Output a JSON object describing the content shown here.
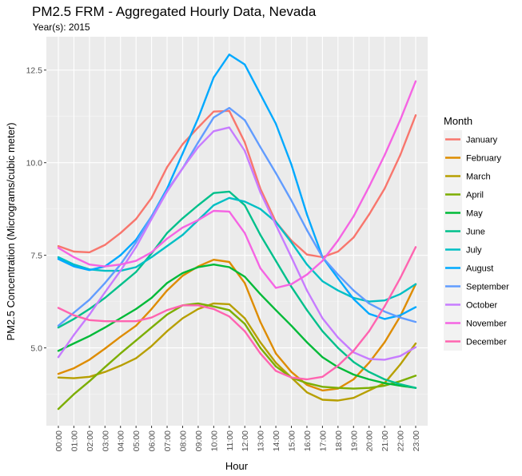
{
  "chart_data": {
    "type": "line",
    "title": "PM2.5 FRM - Aggregated Hourly Data, Nevada",
    "subtitle": "Year(s): 2015",
    "xlabel": "Hour",
    "ylabel": "PM2.5 Concentration (Micrograms/cubic meter)",
    "ylim": [
      2.9,
      13.4
    ],
    "yticks": [
      5.0,
      7.5,
      10.0,
      12.5
    ],
    "ytick_labels": [
      "5.0",
      "7.5",
      "10.0",
      "12.5"
    ],
    "grid": true,
    "legend_title": "Month",
    "legend_position": "right",
    "categories": [
      "00:00",
      "01:00",
      "02:00",
      "03:00",
      "04:00",
      "05:00",
      "06:00",
      "07:00",
      "08:00",
      "09:00",
      "10:00",
      "11:00",
      "12:00",
      "13:00",
      "14:00",
      "15:00",
      "16:00",
      "17:00",
      "18:00",
      "19:00",
      "20:00",
      "21:00",
      "22:00",
      "23:00"
    ],
    "series": [
      {
        "name": "January",
        "color": "#F8766D",
        "values": [
          7.75,
          7.6,
          7.58,
          7.78,
          8.1,
          8.48,
          9.05,
          9.88,
          10.5,
          10.95,
          11.38,
          11.4,
          10.55,
          9.3,
          8.4,
          7.9,
          7.52,
          7.45,
          7.6,
          7.98,
          8.6,
          9.3,
          10.2,
          11.28
        ]
      },
      {
        "name": "February",
        "color": "#DE8C00",
        "values": [
          4.3,
          4.45,
          4.68,
          4.98,
          5.3,
          5.6,
          6.05,
          6.55,
          6.95,
          7.2,
          7.38,
          7.32,
          6.75,
          5.7,
          4.85,
          4.35,
          4.0,
          3.85,
          3.9,
          4.15,
          4.6,
          5.15,
          5.85,
          6.72
        ]
      },
      {
        "name": "March",
        "color": "#B79F00",
        "values": [
          4.2,
          4.18,
          4.22,
          4.35,
          4.52,
          4.72,
          5.05,
          5.45,
          5.8,
          6.05,
          6.2,
          6.18,
          5.8,
          5.15,
          4.6,
          4.2,
          3.8,
          3.6,
          3.58,
          3.65,
          3.85,
          4.05,
          4.55,
          5.12
        ]
      },
      {
        "name": "April",
        "color": "#7CAE00",
        "values": [
          3.35,
          3.75,
          4.1,
          4.48,
          4.85,
          5.2,
          5.55,
          5.9,
          6.15,
          6.2,
          6.12,
          6.02,
          5.65,
          5.0,
          4.5,
          4.2,
          4.05,
          3.95,
          3.92,
          3.9,
          3.92,
          3.98,
          4.1,
          4.25
        ]
      },
      {
        "name": "May",
        "color": "#00BA38",
        "values": [
          4.92,
          5.12,
          5.32,
          5.55,
          5.8,
          6.05,
          6.35,
          6.75,
          7.02,
          7.18,
          7.25,
          7.18,
          6.92,
          6.45,
          6.02,
          5.6,
          5.15,
          4.75,
          4.48,
          4.28,
          4.15,
          4.05,
          3.98,
          3.92
        ]
      },
      {
        "name": "June",
        "color": "#00C08B",
        "values": [
          5.55,
          5.78,
          6.05,
          6.35,
          6.7,
          7.05,
          7.55,
          8.1,
          8.5,
          8.85,
          9.18,
          9.22,
          8.85,
          8.05,
          7.35,
          6.65,
          6.02,
          5.45,
          5.0,
          4.62,
          4.35,
          4.15,
          4.02,
          3.92
        ]
      },
      {
        "name": "July",
        "color": "#00BFC4",
        "values": [
          7.45,
          7.25,
          7.12,
          7.08,
          7.08,
          7.18,
          7.45,
          7.75,
          8.05,
          8.45,
          8.85,
          9.05,
          8.95,
          8.75,
          8.4,
          7.85,
          7.25,
          6.8,
          6.55,
          6.35,
          6.25,
          6.28,
          6.45,
          6.72
        ]
      },
      {
        "name": "August",
        "color": "#00A9FF",
        "values": [
          7.4,
          7.2,
          7.1,
          7.2,
          7.5,
          7.92,
          8.55,
          9.3,
          10.25,
          11.2,
          12.3,
          12.92,
          12.65,
          11.85,
          11.05,
          9.95,
          8.6,
          7.45,
          6.88,
          6.32,
          5.92,
          5.78,
          5.88,
          6.1
        ]
      },
      {
        "name": "September",
        "color": "#619CFF",
        "values": [
          5.6,
          5.95,
          6.3,
          6.75,
          7.25,
          7.85,
          8.55,
          9.25,
          9.85,
          10.55,
          11.22,
          11.48,
          11.15,
          10.42,
          9.72,
          8.98,
          8.18,
          7.45,
          6.98,
          6.55,
          6.2,
          5.98,
          5.82,
          5.7
        ]
      },
      {
        "name": "October",
        "color": "#C77CFF",
        "values": [
          4.75,
          5.35,
          5.9,
          6.5,
          7.08,
          7.72,
          8.48,
          9.22,
          9.85,
          10.42,
          10.85,
          10.95,
          10.32,
          9.2,
          8.32,
          7.45,
          6.55,
          5.8,
          5.28,
          4.88,
          4.7,
          4.68,
          4.78,
          5.02
        ]
      },
      {
        "name": "November",
        "color": "#F564E3",
        "values": [
          7.7,
          7.45,
          7.25,
          7.2,
          7.25,
          7.35,
          7.58,
          7.95,
          8.25,
          8.45,
          8.7,
          8.68,
          8.1,
          7.15,
          6.62,
          6.72,
          6.98,
          7.35,
          7.9,
          8.55,
          9.35,
          10.2,
          11.15,
          12.2
        ]
      },
      {
        "name": "December",
        "color": "#FF64B0",
        "values": [
          6.08,
          5.88,
          5.75,
          5.72,
          5.72,
          5.72,
          5.82,
          6.02,
          6.15,
          6.15,
          6.05,
          5.85,
          5.45,
          4.85,
          4.38,
          4.2,
          4.15,
          4.22,
          4.52,
          4.92,
          5.45,
          6.12,
          6.88,
          7.72
        ]
      }
    ]
  }
}
